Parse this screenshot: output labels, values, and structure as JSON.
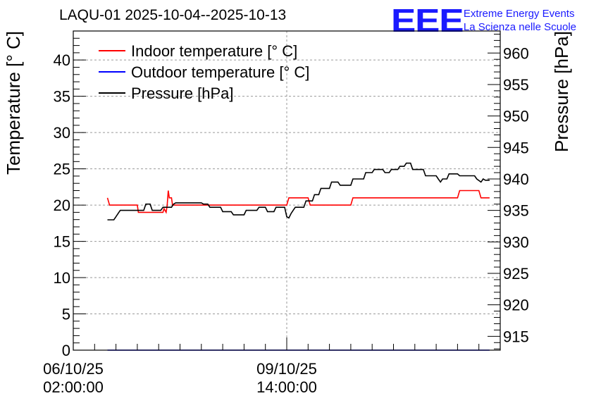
{
  "chart_data": {
    "type": "line",
    "title": "LAQU-01 2025-10-04--2025-10-13",
    "ylabel": "Temperature [° C]",
    "y2label": "Pressure [hPa]",
    "ylim": [
      0,
      44
    ],
    "y2lim": [
      912.8,
      963.5
    ],
    "yticks": [
      0,
      5,
      10,
      15,
      20,
      25,
      30,
      35,
      40
    ],
    "y2ticks": [
      915,
      920,
      925,
      930,
      935,
      940,
      945,
      950,
      955,
      960
    ],
    "xlim": [
      0,
      200
    ],
    "xticks": [
      {
        "x": 0,
        "line1": "06/10/25",
        "line2": "02:00:00"
      },
      {
        "x": 100,
        "line1": "09/10/25",
        "line2": "14:00:00"
      }
    ],
    "grid": true,
    "legend_position": "top-left",
    "series": [
      {
        "name": "Indoor temperature [° C]",
        "axis": "left",
        "color": "#ff0000",
        "x": [
          16,
          16.5,
          17,
          30,
          30.5,
          42,
          42.5,
          43.5,
          44,
          44.5,
          45,
          46,
          46.5,
          48,
          49,
          52,
          53,
          100,
          101,
          110,
          111,
          130,
          131,
          180,
          181,
          190,
          191,
          195
        ],
        "y": [
          21,
          20.5,
          20,
          20,
          19,
          19,
          19.5,
          19,
          20,
          22,
          21,
          21,
          20,
          20,
          20,
          20,
          20,
          20,
          21,
          21,
          20,
          20,
          21,
          21,
          22,
          22,
          21,
          21
        ]
      },
      {
        "name": "Outdoor temperature [° C]",
        "axis": "left",
        "color": "#0000ff",
        "x": [
          16,
          195
        ],
        "y": [
          0,
          0
        ]
      },
      {
        "name": "Pressure [hPa]",
        "axis": "right",
        "color": "#000000",
        "x": [
          16,
          19,
          20,
          21,
          22,
          23,
          33,
          34,
          36,
          37,
          41,
          42,
          46,
          47,
          48,
          52,
          60,
          61,
          63,
          64,
          69,
          70,
          74,
          75,
          80,
          81,
          86,
          87,
          90,
          91,
          94,
          95,
          99,
          100,
          101,
          102,
          103,
          104,
          108,
          109,
          112,
          113,
          115,
          116,
          120,
          121,
          124,
          125,
          130,
          131,
          136,
          137,
          140,
          141,
          145,
          146,
          148,
          149,
          152,
          153,
          155,
          156,
          158,
          159,
          164,
          165,
          170,
          171,
          172,
          173,
          175,
          176,
          180,
          181,
          188,
          189,
          191,
          192,
          193,
          195
        ],
        "y": [
          933.5,
          933.5,
          934,
          934.5,
          935,
          935,
          935,
          936,
          936,
          935,
          935,
          935.5,
          935.5,
          936,
          936.2,
          936.2,
          936.2,
          936,
          936,
          935.5,
          935.5,
          934.8,
          934.8,
          934.3,
          934.3,
          935,
          935,
          935.5,
          935.5,
          934.8,
          934.8,
          935.5,
          935.5,
          934,
          933.8,
          934.5,
          935,
          935.5,
          935.5,
          936.5,
          936.5,
          937.5,
          937.5,
          938.5,
          938.5,
          939.5,
          939.5,
          939,
          939,
          940,
          940,
          941,
          941,
          941.5,
          941.5,
          941,
          941,
          941.5,
          941.5,
          942,
          942,
          942.5,
          942.5,
          941.5,
          941.5,
          940.5,
          940.5,
          940,
          939.5,
          940,
          940,
          940.8,
          940.8,
          940.5,
          940.5,
          940,
          939.5,
          940,
          939.8,
          939.8
        ]
      }
    ]
  },
  "brand": {
    "logo": "EEE",
    "line1": "Extreme Energy Events",
    "line2": "La Scienza nelle Scuole"
  }
}
